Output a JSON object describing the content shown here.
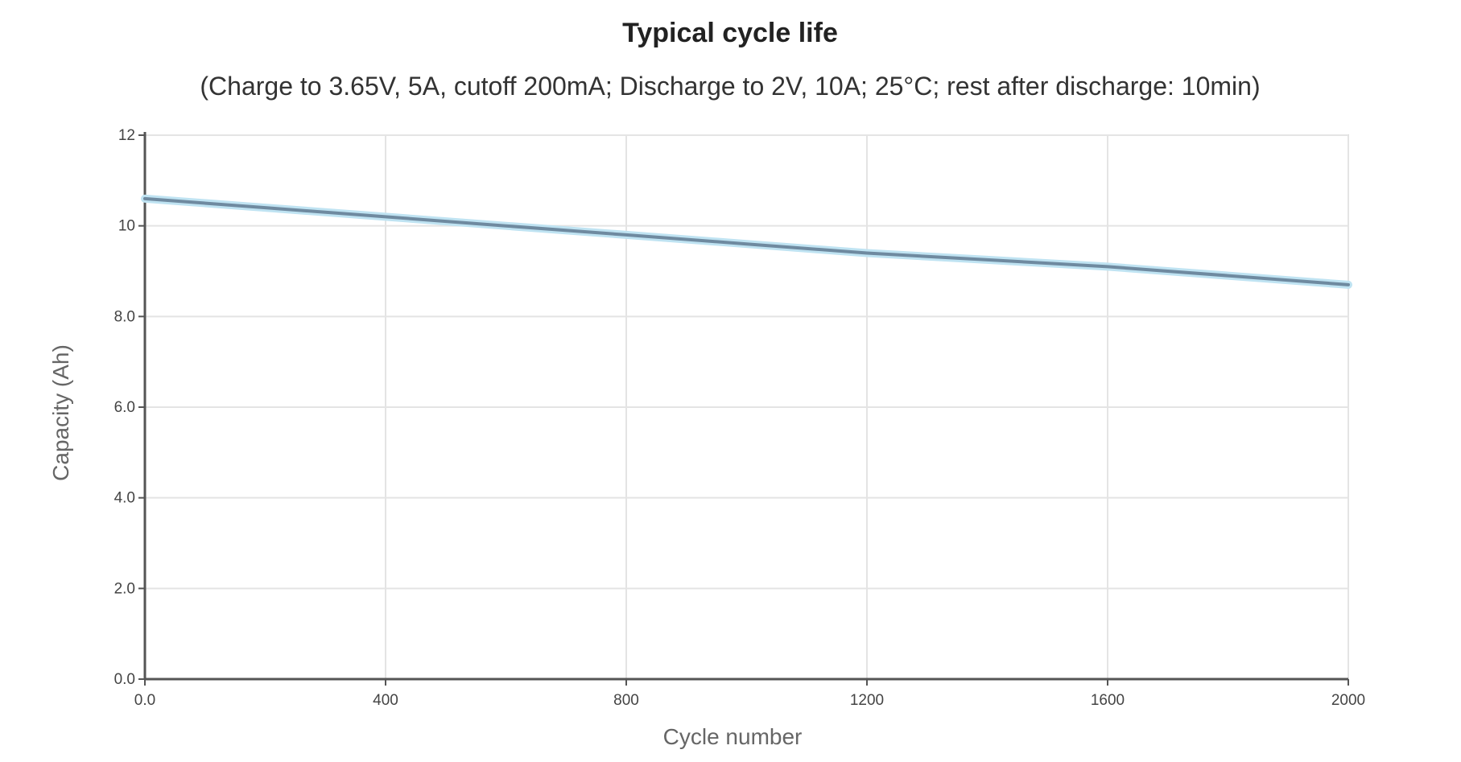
{
  "chart_data": {
    "type": "line",
    "title": "Typical cycle life",
    "subtitle": "(Charge to 3.65V, 5A, cutoff 200mA; Discharge to 2V, 10A; 25°C; rest after discharge: 10min)",
    "xlabel": "Cycle number",
    "ylabel": "Capacity (Ah)",
    "xlim": [
      0,
      2000
    ],
    "ylim": [
      0,
      12
    ],
    "x_ticks": [
      0,
      400,
      800,
      1200,
      1600,
      2000
    ],
    "x_tick_labels": [
      "0.0",
      "400",
      "800",
      "1200",
      "1600",
      "2000"
    ],
    "y_ticks": [
      0,
      2,
      4,
      6,
      8,
      10,
      12
    ],
    "y_tick_labels": [
      "0.0",
      "2.0",
      "4.0",
      "6.0",
      "8.0",
      "10",
      "12"
    ],
    "grid": true,
    "series": [
      {
        "x": [
          0,
          200,
          400,
          600,
          800,
          1000,
          1200,
          1400,
          1600,
          1800,
          2000
        ],
        "y": [
          10.6,
          10.4,
          10.2,
          10.0,
          9.8,
          9.6,
          9.4,
          9.25,
          9.1,
          8.9,
          8.7
        ]
      }
    ]
  },
  "colors": {
    "line": "#6f8aa0",
    "line_glow": "#bfe3f2",
    "grid": "#e4e4e4",
    "axis": "#555555",
    "frame": "#d8d8d8"
  }
}
